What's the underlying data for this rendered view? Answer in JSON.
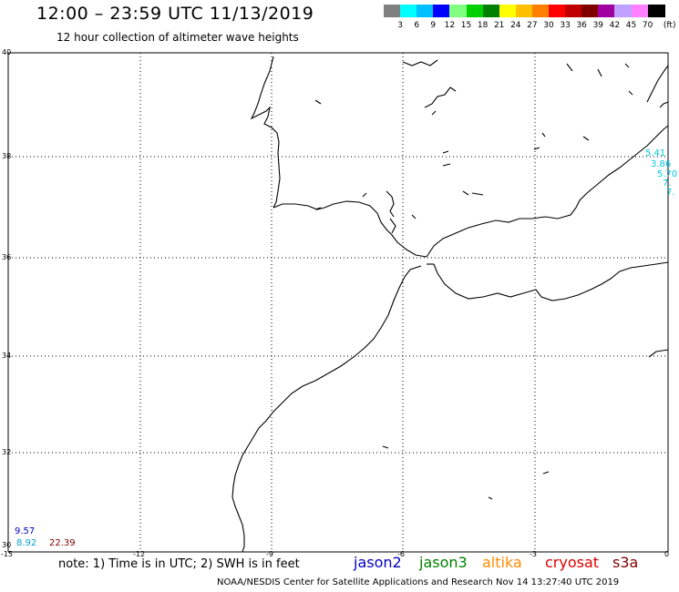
{
  "title": "12:00 – 23:59 UTC 11/13/2019",
  "subtitle": "12 hour collection of altimeter wave heights",
  "colorbar": {
    "unit": "(ft)",
    "labels": [
      "3",
      "6",
      "9",
      "12",
      "15",
      "18",
      "21",
      "24",
      "27",
      "30",
      "33",
      "36",
      "39",
      "42",
      "45",
      "70"
    ],
    "colors": [
      "#808080",
      "#00ffff",
      "#00c0ff",
      "#0000ff",
      "#80ff80",
      "#00d000",
      "#008000",
      "#ffff00",
      "#ffc000",
      "#ff8000",
      "#ff0000",
      "#c00000",
      "#800000",
      "#a000a0",
      "#c0a0ff",
      "#ff80ff",
      "#000000"
    ]
  },
  "axes": {
    "lat_labels": [
      "40",
      "38",
      "36",
      "34",
      "32",
      "30"
    ],
    "lon_labels": [
      "-15",
      "-12",
      "-9",
      "-6",
      "-3",
      "0"
    ]
  },
  "wave_values": {
    "left": [
      "9.57",
      "8.92",
      "22.39"
    ],
    "right": [
      "5.41",
      "3.86",
      "5.70",
      "7.",
      "7."
    ]
  },
  "note": "note: 1) Time is in UTC; 2) SWH is in feet",
  "legend": [
    {
      "label": "jason2",
      "color": "#0000c0"
    },
    {
      "label": "jason3",
      "color": "#008000"
    },
    {
      "label": "altika",
      "color": "#ff8c00"
    },
    {
      "label": "cryosat",
      "color": "#e00000"
    },
    {
      "label": "s3a",
      "color": "#800000"
    }
  ],
  "footer": "NOAA/NESDIS Center for Satellite Applications and Research    Nov 14 13:27:40 UTC 2019"
}
